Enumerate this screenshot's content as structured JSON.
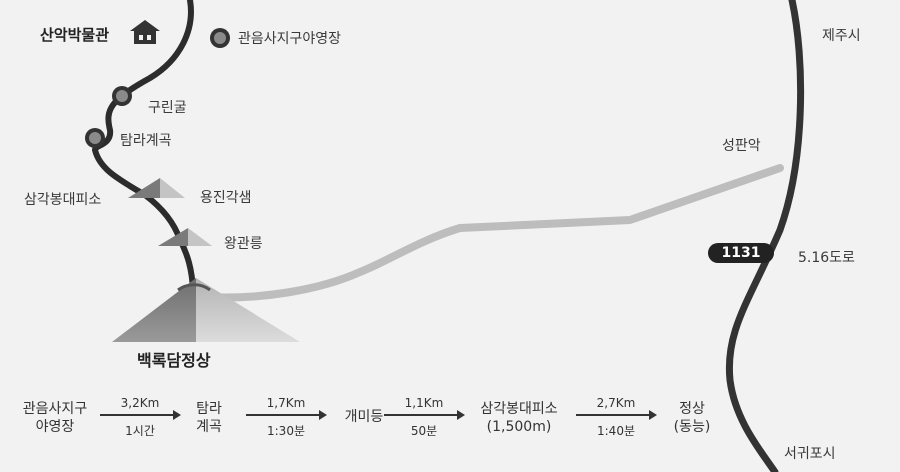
{
  "places": {
    "museum": "산악박물관",
    "campsite": "관음사지구야영장",
    "jeju_city": "제주시",
    "gurin_gul": "구린굴",
    "tamna_valley": "탐라계곡",
    "seongpanak": "성판악",
    "sam_shelter": "삼각봉대피소",
    "yongjin": "용진각샘",
    "wanggwan": "왕관릉",
    "summit": "백록담정상",
    "road_name": "5.16도로",
    "route_number": "1131",
    "seogwipo": "서귀포시"
  },
  "icons": {
    "museum": "house-icon",
    "campsite": "map-marker-icon"
  },
  "course": {
    "stops": [
      {
        "line1": "관음사지구",
        "line2": "야영장"
      },
      {
        "line1": "탐라",
        "line2": "계곡"
      },
      {
        "line1": "개미등",
        "line2": ""
      },
      {
        "line1": "삼각봉대피소",
        "line2": "(1,500m)"
      },
      {
        "line1": "정상",
        "line2": "(동능)"
      }
    ],
    "segments": [
      {
        "distance": "3,2Km",
        "time": "1시간"
      },
      {
        "distance": "1,7Km",
        "time": "1:30분"
      },
      {
        "distance": "1,1Km",
        "time": "50분"
      },
      {
        "distance": "2,7Km",
        "time": "1:40분"
      }
    ]
  }
}
